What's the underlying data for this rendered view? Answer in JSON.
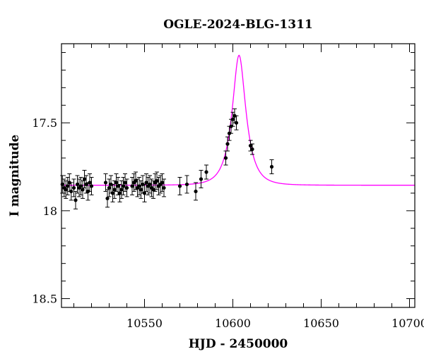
{
  "chart_data": {
    "type": "scatter",
    "title": "OGLE-2024-BLG-1311",
    "xlabel": "HJD - 2450000",
    "ylabel": "I magnitude",
    "xlim": [
      10503,
      10703
    ],
    "ylim": [
      18.55,
      17.05
    ],
    "y_inverted": true,
    "x_ticks": [
      {
        "value": 10550,
        "label": "10550"
      },
      {
        "value": 10600,
        "label": "10600"
      },
      {
        "value": 10650,
        "label": "10650"
      },
      {
        "value": 10700,
        "label": "10700"
      }
    ],
    "y_ticks": [
      {
        "value": 17.5,
        "label": "17.5"
      },
      {
        "value": 18,
        "label": "18"
      },
      {
        "value": 18.5,
        "label": "18.5"
      }
    ],
    "x_minor_step": 10,
    "y_minor_step": 0.1,
    "grid": false,
    "legend": "none",
    "series": [
      {
        "kind": "points",
        "color": "#000000",
        "x": [
          10503.5,
          10504.5,
          10505.5,
          10506.5,
          10507.5,
          10508.5,
          10510,
          10511,
          10512,
          10513,
          10514,
          10515,
          10516,
          10517,
          10518,
          10519,
          10520,
          10528,
          10529,
          10530,
          10531,
          10532,
          10533,
          10534,
          10535,
          10536,
          10537,
          10538,
          10539,
          10540,
          10543,
          10544,
          10545,
          10546,
          10547,
          10548,
          10549,
          10550,
          10551,
          10552,
          10553,
          10554,
          10555,
          10556,
          10557,
          10558,
          10559,
          10560,
          10561,
          10570,
          10574,
          10579,
          10582,
          10585,
          10596,
          10597,
          10598,
          10599,
          10600,
          10601,
          10602,
          10610,
          10611,
          10622
        ],
        "y": [
          17.85,
          17.87,
          17.88,
          17.86,
          17.84,
          17.89,
          17.87,
          17.94,
          17.85,
          17.87,
          17.86,
          17.88,
          17.82,
          17.85,
          17.89,
          17.84,
          17.86,
          17.84,
          17.93,
          17.87,
          17.85,
          17.9,
          17.88,
          17.84,
          17.86,
          17.9,
          17.88,
          17.86,
          17.84,
          17.87,
          17.86,
          17.84,
          17.83,
          17.87,
          17.86,
          17.88,
          17.85,
          17.9,
          17.84,
          17.86,
          17.85,
          17.87,
          17.88,
          17.84,
          17.83,
          17.86,
          17.85,
          17.84,
          17.87,
          17.86,
          17.85,
          17.89,
          17.82,
          17.78,
          17.7,
          17.62,
          17.56,
          17.52,
          17.48,
          17.46,
          17.5,
          17.63,
          17.65,
          17.75
        ],
        "yerr": [
          0.05,
          0.05,
          0.05,
          0.05,
          0.05,
          0.05,
          0.05,
          0.05,
          0.05,
          0.05,
          0.05,
          0.05,
          0.05,
          0.05,
          0.05,
          0.05,
          0.05,
          0.05,
          0.05,
          0.05,
          0.05,
          0.05,
          0.05,
          0.05,
          0.05,
          0.05,
          0.05,
          0.05,
          0.05,
          0.05,
          0.05,
          0.05,
          0.05,
          0.05,
          0.05,
          0.05,
          0.05,
          0.05,
          0.05,
          0.05,
          0.05,
          0.05,
          0.05,
          0.05,
          0.05,
          0.05,
          0.05,
          0.05,
          0.05,
          0.05,
          0.05,
          0.05,
          0.05,
          0.04,
          0.04,
          0.04,
          0.04,
          0.04,
          0.04,
          0.04,
          0.04,
          0.03,
          0.03,
          0.04
        ]
      },
      {
        "kind": "model",
        "color": "#ff00ff",
        "model": {
          "t0": 10603.5,
          "u0": 0.44,
          "tE": 7.5,
          "base": 17.855,
          "blend": 0.32
        },
        "x_range": [
          10503,
          10703
        ]
      }
    ]
  }
}
